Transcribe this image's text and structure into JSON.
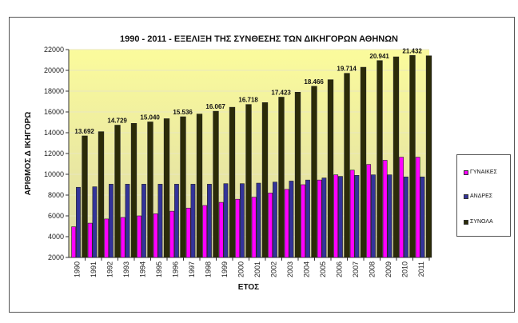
{
  "chart_data": {
    "type": "bar",
    "title": "1990 - 2011 - ΕΞΕΛΙΞΗ ΤΗΣ ΣΥΝΘΕΣΗΣ ΤΩΝ ΔΙΚΗΓΟΡΩΝ ΑΘΗΝΩΝ",
    "xlabel": "ΕΤΟΣ",
    "ylabel": "ΑΡΙΘΜΟΣ  Δ ΙΚΗΓΟΡΩ",
    "ylim": [
      2000,
      22000
    ],
    "yticks": [
      2000,
      4000,
      6000,
      8000,
      10000,
      12000,
      14000,
      16000,
      18000,
      20000,
      22000
    ],
    "grid": true,
    "legend_position": "right",
    "categories": [
      "1990",
      "1991",
      "1992",
      "1993",
      "1994",
      "1995",
      "1996",
      "1997",
      "1998",
      "1999",
      "2000",
      "2001",
      "2002",
      "2003",
      "2004",
      "2005",
      "2006",
      "2007",
      "2008",
      "2009",
      "2010",
      "2011"
    ],
    "series": [
      {
        "name": "ΓΥΝΑΙΚΕΣ",
        "color": "#ff00ff",
        "values": [
          4950,
          5300,
          5700,
          5850,
          6000,
          6200,
          6450,
          6750,
          7000,
          7300,
          7600,
          7800,
          8200,
          8550,
          9000,
          9450,
          9950,
          10400,
          10950,
          11350,
          11650,
          11650
        ]
      },
      {
        "name": "ΑΝΔΡΕΣ",
        "color": "#33339a",
        "values": [
          8750,
          8800,
          9050,
          9050,
          9050,
          9050,
          9050,
          9050,
          9050,
          9100,
          9100,
          9150,
          9250,
          9350,
          9450,
          9650,
          9800,
          9900,
          9950,
          9950,
          9750,
          9750
        ]
      },
      {
        "name": "ΣΥΝΟΛΑ",
        "color": "#2b2b08",
        "values": [
          13692,
          14100,
          14729,
          14900,
          15040,
          15350,
          15536,
          15800,
          16067,
          16450,
          16718,
          16900,
          17423,
          17900,
          18466,
          19100,
          19714,
          20300,
          20941,
          21300,
          21432,
          21400
        ]
      }
    ],
    "data_labels": [
      {
        "category": "1990",
        "text": "13.692"
      },
      {
        "category": "1992",
        "text": "14.729"
      },
      {
        "category": "1994",
        "text": "15.040"
      },
      {
        "category": "1996",
        "text": "15.536"
      },
      {
        "category": "1998",
        "text": "16.067"
      },
      {
        "category": "2000",
        "text": "16.718"
      },
      {
        "category": "2002",
        "text": "17.423"
      },
      {
        "category": "2004",
        "text": "18.466"
      },
      {
        "category": "2006",
        "text": "19.714"
      },
      {
        "category": "2008",
        "text": "20.941"
      },
      {
        "category": "2010",
        "text": "21.432"
      }
    ]
  },
  "legend": {
    "items": [
      {
        "label": "ΓΥΝΑΙΚΕΣ",
        "color": "#ff00ff"
      },
      {
        "label": "ΑΝΔΡΕΣ",
        "color": "#33339a"
      },
      {
        "label": "ΣΥΝΟΛΑ",
        "color": "#2b2b08"
      }
    ]
  }
}
